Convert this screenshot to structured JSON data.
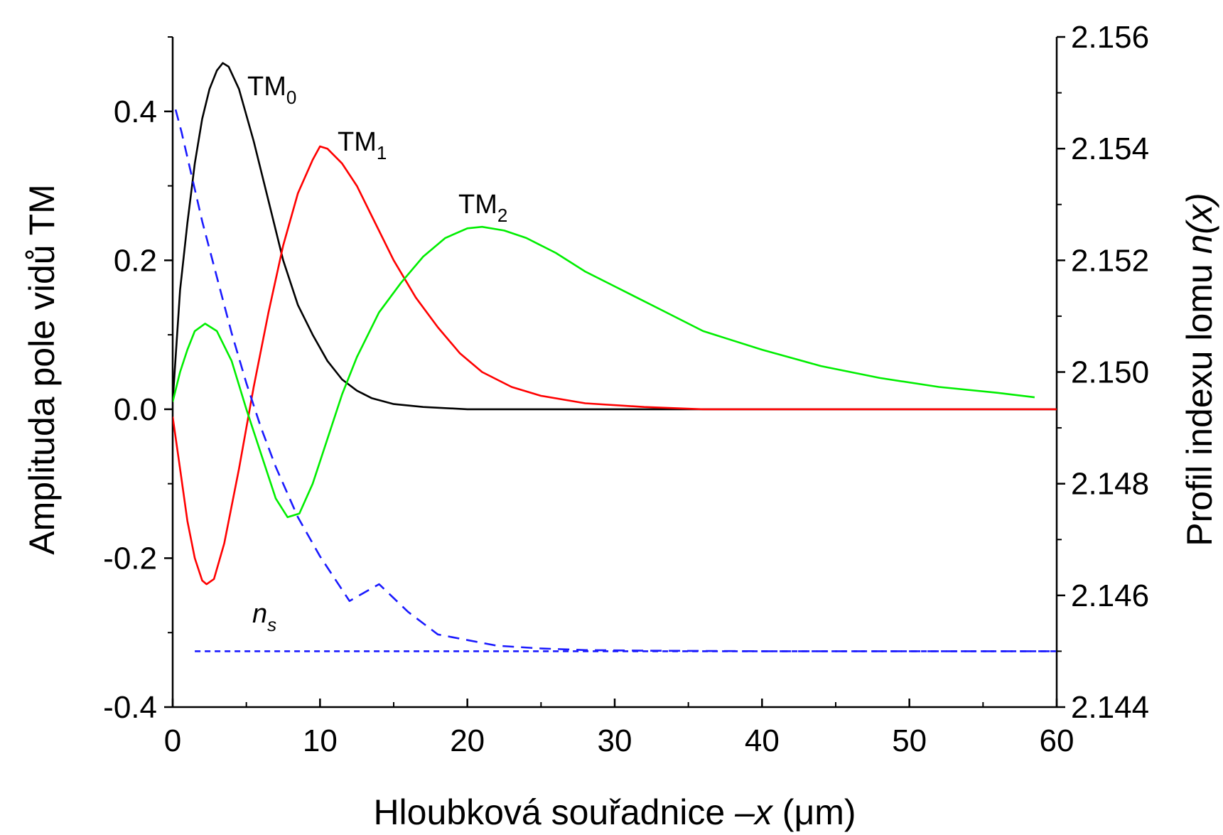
{
  "chart_data": {
    "type": "line",
    "xlabel": {
      "before": "Hloubková souřadnice ",
      "var": "–x",
      "after": " (μm)"
    },
    "ylabel_left": "Amplituda pole vidů TM",
    "ylabel_right": {
      "before": "Profil indexu lomu ",
      "var": "n(x)"
    },
    "xlim": [
      0,
      60
    ],
    "ylim_left": [
      -0.4,
      0.5
    ],
    "ylim_right": [
      2.144,
      2.156
    ],
    "x_ticks": [
      "0",
      "10",
      "20",
      "30",
      "40",
      "50",
      "60"
    ],
    "y_left_ticks": [
      "-0.4",
      "-0.2",
      "0.0",
      "0.2",
      "0.4"
    ],
    "y_right_ticks": [
      "2.144",
      "2.146",
      "2.148",
      "2.150",
      "2.152",
      "2.154",
      "2.156"
    ],
    "grid": false,
    "series": [
      {
        "label_main": "TM",
        "label_sub": "0",
        "axis": "left",
        "color": "#000000",
        "style": "solid",
        "points": [
          [
            0,
            0.01
          ],
          [
            0.5,
            0.16
          ],
          [
            1,
            0.25
          ],
          [
            1.5,
            0.33
          ],
          [
            2,
            0.39
          ],
          [
            2.5,
            0.43
          ],
          [
            3,
            0.455
          ],
          [
            3.4,
            0.465
          ],
          [
            3.8,
            0.46
          ],
          [
            4.5,
            0.43
          ],
          [
            5.5,
            0.36
          ],
          [
            6.5,
            0.28
          ],
          [
            7.5,
            0.2
          ],
          [
            8.5,
            0.14
          ],
          [
            9.5,
            0.1
          ],
          [
            10.5,
            0.065
          ],
          [
            11.5,
            0.04
          ],
          [
            12.5,
            0.025
          ],
          [
            13.5,
            0.015
          ],
          [
            15,
            0.007
          ],
          [
            17,
            0.003
          ],
          [
            20,
            0.0
          ],
          [
            60,
            0.0
          ]
        ]
      },
      {
        "label_main": "TM",
        "label_sub": "1",
        "axis": "left",
        "color": "#ff0000",
        "style": "solid",
        "points": [
          [
            0,
            -0.01
          ],
          [
            0.5,
            -0.08
          ],
          [
            1,
            -0.15
          ],
          [
            1.5,
            -0.2
          ],
          [
            2,
            -0.23
          ],
          [
            2.3,
            -0.235
          ],
          [
            2.8,
            -0.228
          ],
          [
            3.5,
            -0.18
          ],
          [
            4.5,
            -0.08
          ],
          [
            5.5,
            0.03
          ],
          [
            6.5,
            0.13
          ],
          [
            7.5,
            0.22
          ],
          [
            8.5,
            0.29
          ],
          [
            9.5,
            0.335
          ],
          [
            10,
            0.353
          ],
          [
            10.5,
            0.35
          ],
          [
            11.5,
            0.33
          ],
          [
            12.5,
            0.3
          ],
          [
            13.5,
            0.26
          ],
          [
            15,
            0.2
          ],
          [
            16.5,
            0.15
          ],
          [
            18,
            0.11
          ],
          [
            19.5,
            0.075
          ],
          [
            21,
            0.05
          ],
          [
            23,
            0.03
          ],
          [
            25,
            0.018
          ],
          [
            28,
            0.008
          ],
          [
            32,
            0.003
          ],
          [
            36,
            0.0
          ],
          [
            60,
            0.0
          ]
        ]
      },
      {
        "label_main": "TM",
        "label_sub": "2",
        "axis": "left",
        "color": "#00ee00",
        "style": "solid",
        "points": [
          [
            0,
            0.01
          ],
          [
            0.5,
            0.05
          ],
          [
            1,
            0.08
          ],
          [
            1.5,
            0.105
          ],
          [
            2.2,
            0.115
          ],
          [
            3,
            0.105
          ],
          [
            4,
            0.065
          ],
          [
            5,
            0.0
          ],
          [
            6,
            -0.06
          ],
          [
            7,
            -0.12
          ],
          [
            7.8,
            -0.145
          ],
          [
            8.6,
            -0.14
          ],
          [
            9.5,
            -0.1
          ],
          [
            10.5,
            -0.04
          ],
          [
            11.5,
            0.02
          ],
          [
            12.5,
            0.07
          ],
          [
            14,
            0.13
          ],
          [
            15.5,
            0.17
          ],
          [
            17,
            0.205
          ],
          [
            18.5,
            0.23
          ],
          [
            20,
            0.243
          ],
          [
            21,
            0.245
          ],
          [
            22.5,
            0.24
          ],
          [
            24,
            0.23
          ],
          [
            26,
            0.21
          ],
          [
            28,
            0.185
          ],
          [
            30,
            0.165
          ],
          [
            33,
            0.135
          ],
          [
            36,
            0.105
          ],
          [
            40,
            0.08
          ],
          [
            44,
            0.058
          ],
          [
            48,
            0.042
          ],
          [
            52,
            0.03
          ],
          [
            56,
            0.022
          ],
          [
            58.5,
            0.016
          ]
        ]
      },
      {
        "label_main": "",
        "label_sub": "",
        "axis": "right",
        "color": "#1a1aff",
        "style": "dashed",
        "points": [
          [
            0.2,
            2.1547
          ],
          [
            0.6,
            2.1543
          ],
          [
            1.3,
            2.1535
          ],
          [
            2,
            2.1527
          ],
          [
            3,
            2.1517
          ],
          [
            4,
            2.1507
          ],
          [
            5,
            2.1498
          ],
          [
            6,
            2.149
          ],
          [
            7,
            2.1483
          ],
          [
            8.5,
            2.1474
          ],
          [
            10,
            2.1467
          ],
          [
            12,
            2.1459
          ],
          [
            14,
            2.1462
          ],
          [
            14.01,
            2.1462
          ],
          [
            16,
            2.1457
          ],
          [
            18,
            2.1453
          ],
          [
            20,
            2.1452
          ],
          [
            22,
            2.1451
          ],
          [
            25,
            2.14505
          ],
          [
            28,
            2.14502
          ],
          [
            32,
            2.14501
          ],
          [
            40,
            2.145
          ],
          [
            60,
            2.145
          ]
        ]
      },
      {
        "label_main": "",
        "label_sub": "",
        "axis": "right",
        "color": "#1a1aff",
        "style": "short-dashed",
        "points": [
          [
            1.5,
            2.145
          ],
          [
            60,
            2.145
          ]
        ]
      }
    ],
    "annotations": [
      {
        "var": "n",
        "sub": "s"
      }
    ]
  }
}
